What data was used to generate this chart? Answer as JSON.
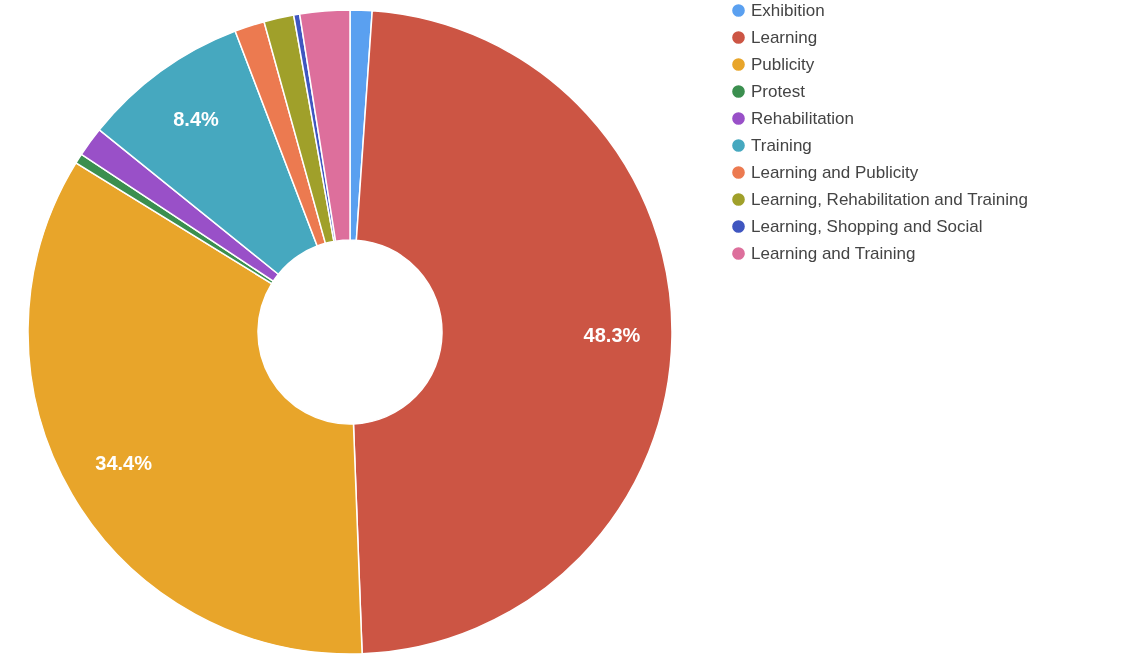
{
  "chart_data": {
    "type": "donut",
    "categories": [
      "Exhibition",
      "Learning",
      "Publicity",
      "Protest",
      "Rehabilitation",
      "Training",
      "Learning and Publicity",
      "Learning, Rehabilitation and Training",
      "Learning, Shopping and Social",
      "Learning and Training"
    ],
    "values": [
      1.1,
      48.3,
      34.4,
      0.5,
      1.5,
      8.4,
      1.5,
      1.5,
      0.3,
      2.5
    ],
    "colors": [
      "#5aa0f0",
      "#cc5544",
      "#e8a52a",
      "#3b8f4f",
      "#9950c8",
      "#46a8bf",
      "#ec7a50",
      "#a0a02a",
      "#3f56c0",
      "#dd6f9c"
    ],
    "value_labels": [
      null,
      "48.3%",
      "34.4%",
      null,
      null,
      "8.4%",
      null,
      null,
      null,
      null
    ],
    "legend": "top right"
  }
}
